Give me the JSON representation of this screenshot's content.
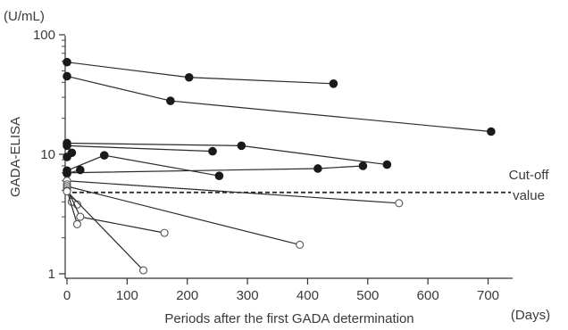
{
  "chart_data": {
    "type": "line",
    "title": "",
    "xlabel": "Periods after the first GADA determination",
    "x_unit": "(Days)",
    "ylabel": "GADA-ELISA",
    "y_unit": "(U/mL)",
    "y_scale": "log",
    "xlim": [
      0,
      750
    ],
    "ylim": [
      1,
      100
    ],
    "x_ticks": [
      "0",
      "100",
      "200",
      "300",
      "400",
      "500",
      "600",
      "700"
    ],
    "y_ticks": [
      "1",
      "10",
      "100"
    ],
    "grid": false,
    "legend": "none",
    "reference_line": {
      "y": 4.8,
      "style": "dashed",
      "label": "Cut-off\nvalue"
    },
    "series": [
      {
        "marker": "filled",
        "points": [
          [
            0,
            59
          ],
          [
            203,
            44
          ],
          [
            443,
            39
          ]
        ]
      },
      {
        "marker": "filled",
        "points": [
          [
            0,
            45
          ],
          [
            172,
            28
          ],
          [
            705,
            15.5
          ]
        ]
      },
      {
        "marker": "filled",
        "points": [
          [
            0,
            12.4
          ],
          [
            290,
            11.8
          ],
          [
            532,
            8.2
          ]
        ]
      },
      {
        "marker": "filled",
        "points": [
          [
            0,
            11.8
          ],
          [
            242,
            10.6
          ]
        ]
      },
      {
        "marker": "filled",
        "points": [
          [
            0,
            9.5
          ],
          [
            8,
            10.3
          ]
        ]
      },
      {
        "marker": "filled",
        "points": [
          [
            0,
            7.3
          ],
          [
            62,
            9.8
          ],
          [
            253,
            6.6
          ]
        ]
      },
      {
        "marker": "filled",
        "points": [
          [
            0,
            7.0
          ],
          [
            417,
            7.6
          ],
          [
            492,
            8.0
          ]
        ]
      },
      {
        "marker": "filled",
        "points": [
          [
            0,
            6.9
          ],
          [
            22,
            7.4
          ]
        ]
      },
      {
        "marker": "open",
        "points": [
          [
            0,
            6.0
          ],
          [
            552,
            3.9
          ]
        ]
      },
      {
        "marker": "open",
        "points": [
          [
            0,
            5.6
          ],
          [
            8,
            4.0
          ],
          [
            17,
            3.8
          ]
        ]
      },
      {
        "marker": "open",
        "points": [
          [
            0,
            5.4
          ],
          [
            387,
            1.75
          ]
        ]
      },
      {
        "marker": "open",
        "points": [
          [
            0,
            5.2
          ],
          [
            22,
            3.0
          ],
          [
            162,
            2.2
          ]
        ]
      },
      {
        "marker": "open",
        "points": [
          [
            0,
            5.0
          ],
          [
            17,
            2.6
          ]
        ]
      },
      {
        "marker": "open",
        "points": [
          [
            0,
            4.9
          ],
          [
            127,
            1.07
          ]
        ]
      }
    ]
  }
}
